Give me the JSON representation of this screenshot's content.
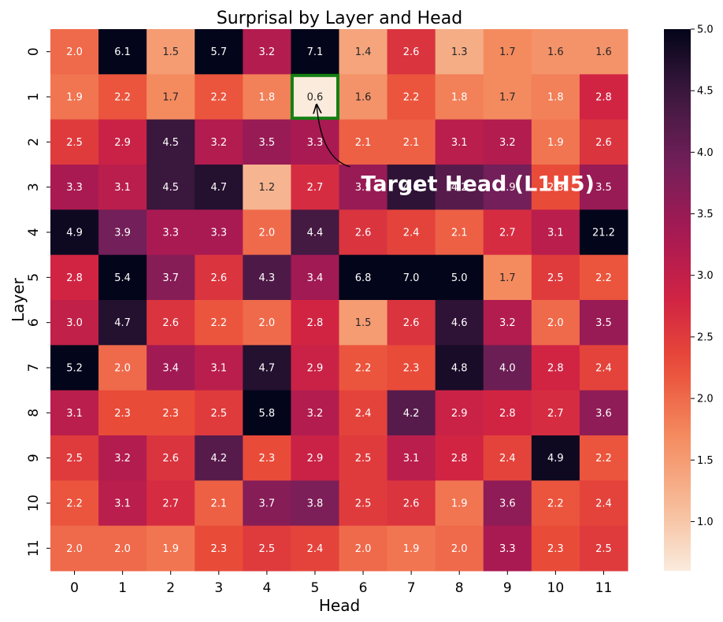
{
  "chart_data": {
    "type": "heatmap",
    "title": "Surprisal by Layer and Head",
    "xlabel": "Head",
    "ylabel": "Layer",
    "x_categories": [
      "0",
      "1",
      "2",
      "3",
      "4",
      "5",
      "6",
      "7",
      "8",
      "9",
      "10",
      "11"
    ],
    "y_categories": [
      "0",
      "1",
      "2",
      "3",
      "4",
      "5",
      "6",
      "7",
      "8",
      "9",
      "10",
      "11"
    ],
    "values": [
      [
        2.0,
        6.1,
        1.5,
        5.7,
        3.2,
        7.1,
        1.4,
        2.6,
        1.3,
        1.7,
        1.6,
        1.6
      ],
      [
        1.9,
        2.2,
        1.7,
        2.2,
        1.8,
        0.6,
        1.6,
        2.2,
        1.8,
        1.7,
        1.8,
        2.8
      ],
      [
        2.5,
        2.9,
        4.5,
        3.2,
        3.5,
        3.3,
        2.1,
        2.1,
        3.1,
        3.2,
        1.9,
        2.6
      ],
      [
        3.3,
        3.1,
        4.5,
        4.7,
        1.2,
        2.7,
        3.5,
        4.6,
        4.2,
        3.9,
        2.3,
        3.5
      ],
      [
        4.9,
        3.9,
        3.3,
        3.3,
        2.0,
        4.4,
        2.6,
        2.4,
        2.1,
        2.7,
        3.1,
        21.2
      ],
      [
        2.8,
        5.4,
        3.7,
        2.6,
        4.3,
        3.4,
        6.8,
        7.0,
        5.0,
        1.7,
        2.5,
        2.2
      ],
      [
        3.0,
        4.7,
        2.6,
        2.2,
        2.0,
        2.8,
        1.5,
        2.6,
        4.6,
        3.2,
        2.0,
        3.5
      ],
      [
        5.2,
        2.0,
        3.4,
        3.1,
        4.7,
        2.9,
        2.2,
        2.3,
        4.8,
        4.0,
        2.8,
        2.4
      ],
      [
        3.1,
        2.3,
        2.3,
        2.5,
        5.8,
        3.2,
        2.4,
        4.2,
        2.9,
        2.8,
        2.7,
        3.6
      ],
      [
        2.5,
        3.2,
        2.6,
        4.2,
        2.3,
        2.9,
        2.5,
        3.1,
        2.8,
        2.4,
        4.9,
        2.2
      ],
      [
        2.2,
        3.1,
        2.7,
        2.1,
        3.7,
        3.8,
        2.5,
        2.6,
        1.9,
        3.6,
        2.2,
        2.4
      ],
      [
        2.0,
        2.0,
        1.9,
        2.3,
        2.5,
        2.4,
        2.0,
        1.9,
        2.0,
        3.3,
        2.3,
        2.5
      ]
    ],
    "color_range": [
      0.6,
      5.0
    ],
    "colorbar_ticks": [
      "1.0",
      "1.5",
      "2.0",
      "2.5",
      "3.0",
      "3.5",
      "4.0",
      "4.5",
      "5.0"
    ],
    "colormap": "rocket_r",
    "highlight": {
      "layer": 1,
      "head": 5,
      "color": "#138013"
    },
    "annotation": {
      "text": "Target Head (L1H5)",
      "points_to_layer": 1,
      "points_to_head": 5
    }
  }
}
